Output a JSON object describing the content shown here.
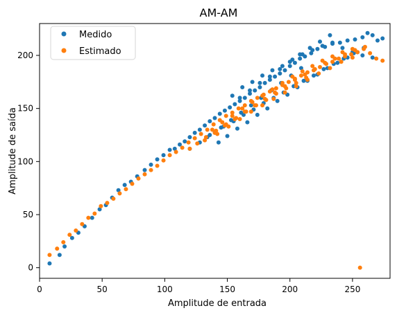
{
  "chart_data": {
    "type": "scatter",
    "title": "AM-AM",
    "xlabel": "Amplitude de entrada",
    "ylabel": "Amplitude de saída",
    "xlim": [
      0,
      280
    ],
    "ylim": [
      -10,
      230
    ],
    "x_ticks": [
      0,
      50,
      100,
      150,
      200,
      250
    ],
    "y_ticks": [
      0,
      50,
      100,
      150,
      200
    ],
    "grid": false,
    "legend_position": "top-left",
    "series": [
      {
        "name": "Medido",
        "color": "#1f77b4",
        "marker": "circle",
        "x": [
          8,
          16,
          20,
          26,
          31,
          36,
          42,
          48,
          53,
          58,
          63,
          68,
          73,
          78,
          84,
          89,
          94,
          99,
          104,
          108,
          112,
          116,
          120,
          124,
          128,
          132,
          136,
          140,
          144,
          148,
          152,
          156,
          160,
          164,
          168,
          172,
          176,
          180,
          184,
          188,
          192,
          196,
          200,
          204,
          208,
          212,
          217,
          222,
          228,
          234,
          240,
          246,
          252,
          258,
          262,
          266,
          270,
          274,
          136,
          145,
          153,
          161,
          169,
          177,
          185,
          193,
          201,
          209,
          143,
          150,
          158,
          166,
          174,
          182,
          190,
          198,
          206,
          214,
          222,
          230,
          238,
          246,
          254,
          120,
          128,
          134,
          140,
          147,
          155,
          163,
          171,
          179,
          187,
          195,
          203,
          211,
          219,
          227,
          235,
          243,
          251,
          259,
          160,
          168,
          176,
          184,
          192,
          200,
          208,
          216,
          224,
          232,
          154,
          162,
          170,
          178,
          186,
          194,
          202,
          210,
          218,
          226,
          234,
          242,
          250,
          258,
          266
        ],
        "y": [
          4,
          12,
          20,
          28,
          33,
          39,
          47,
          55,
          59,
          66,
          73,
          78,
          81,
          86,
          92,
          97,
          102,
          106,
          111,
          112,
          116,
          119,
          123,
          127,
          130,
          134,
          138,
          141,
          145,
          148,
          151,
          154,
          157,
          160,
          164,
          167,
          170,
          174,
          177,
          180,
          183,
          186,
          190,
          193,
          197,
          199,
          202,
          206,
          208,
          211,
          212,
          214,
          215,
          217,
          221,
          219,
          214,
          216,
          125,
          132,
          139,
          146,
          153,
          160,
          167,
          174,
          181,
          188,
          118,
          124,
          131,
          137,
          144,
          150,
          157,
          163,
          170,
          176,
          182,
          188,
          193,
          198,
          203,
          112,
          118,
          123,
          128,
          133,
          138,
          144,
          149,
          155,
          160,
          165,
          171,
          176,
          181,
          187,
          192,
          197,
          202,
          207,
          160,
          167,
          174,
          180,
          187,
          194,
          201,
          207,
          213,
          219,
          162,
          170,
          175,
          181,
          186,
          190,
          196,
          201,
          205,
          209,
          212,
          207,
          203,
          200,
          198
        ]
      },
      {
        "name": "Estimado",
        "color": "#ff7f0e",
        "marker": "circle",
        "x": [
          8,
          14,
          19,
          24,
          29,
          34,
          39,
          44,
          49,
          54,
          59,
          64,
          69,
          74,
          79,
          84,
          89,
          94,
          99,
          104,
          109,
          114,
          119,
          124,
          129,
          134,
          139,
          144,
          149,
          154,
          159,
          164,
          169,
          174,
          179,
          184,
          189,
          194,
          199,
          204,
          209,
          214,
          219,
          224,
          229,
          234,
          239,
          244,
          249,
          254,
          259,
          264,
          269,
          274,
          256,
          138,
          146,
          154,
          162,
          170,
          178,
          186,
          194,
          202,
          210,
          218,
          226,
          234,
          242,
          250,
          142,
          151,
          160,
          169,
          178,
          187,
          196,
          205,
          214,
          223,
          232,
          241,
          250,
          132,
          140,
          148,
          156,
          164,
          172,
          180,
          188,
          196,
          204,
          212,
          220,
          228,
          236,
          244,
          252,
          260,
          120,
          126,
          133,
          141,
          149,
          157,
          165,
          173,
          181,
          189,
          197,
          205,
          213
        ],
        "y": [
          12,
          18,
          24,
          31,
          35,
          41,
          47,
          51,
          58,
          61,
          65,
          70,
          74,
          79,
          84,
          88,
          92,
          96,
          101,
          106,
          109,
          113,
          118,
          122,
          126,
          130,
          135,
          139,
          143,
          146,
          150,
          153,
          157,
          160,
          163,
          166,
          169,
          172,
          175,
          178,
          181,
          184,
          186,
          189,
          192,
          194,
          197,
          199,
          201,
          203,
          206,
          202,
          197,
          195,
          0,
          130,
          137,
          143,
          150,
          156,
          162,
          168,
          174,
          180,
          185,
          190,
          195,
          199,
          203,
          206,
          126,
          133,
          140,
          147,
          153,
          159,
          165,
          171,
          177,
          183,
          188,
          194,
          198,
          120,
          127,
          134,
          140,
          147,
          153,
          159,
          165,
          171,
          177,
          182,
          187,
          193,
          197,
          201,
          205,
          208,
          112,
          117,
          123,
          129,
          135,
          141,
          147,
          153,
          158,
          164,
          169,
          174,
          179
        ]
      }
    ]
  }
}
